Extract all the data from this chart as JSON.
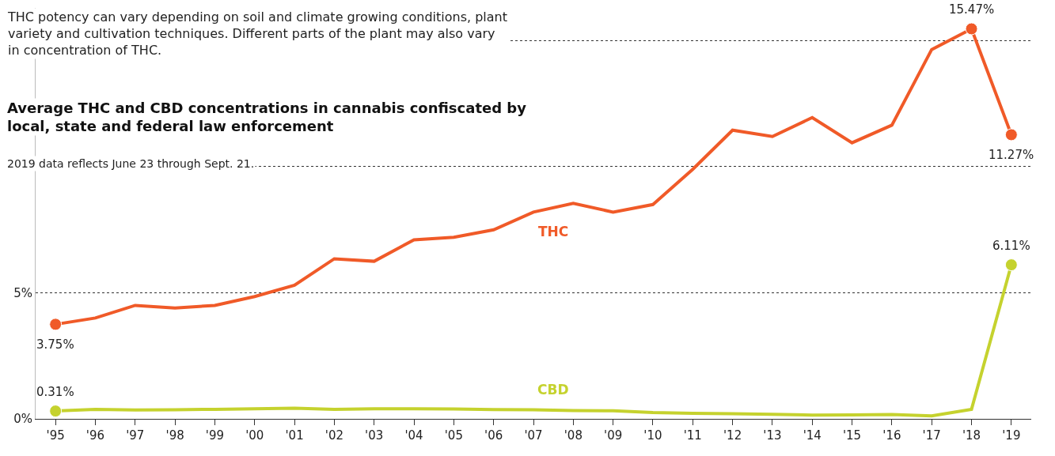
{
  "chart_data": {
    "type": "line",
    "title": "Average THC and CBD concentrations in cannabis confiscated by local, state and federal law enforcement",
    "subtitle": "2019 data reflects June 23 through Sept. 21.",
    "annotations": [
      "THC potency can vary depending on soil and climate growing conditions, plant variety and cultivation techniques. Different parts of the plant may also vary in concentration of THC."
    ],
    "categories": [
      "'95",
      "'96",
      "'97",
      "'98",
      "'99",
      "'00",
      "'01",
      "'02",
      "'03",
      "'04",
      "'05",
      "'06",
      "'07",
      "'08",
      "'09",
      "'10",
      "'11",
      "'12",
      "'13",
      "'14",
      "'15",
      "'16",
      "'17",
      "'18",
      "'19"
    ],
    "series": [
      {
        "name": "THC",
        "color": "#f05a28",
        "values": [
          3.75,
          4.0,
          4.5,
          4.4,
          4.5,
          4.85,
          5.3,
          6.35,
          6.25,
          7.1,
          7.2,
          7.5,
          8.2,
          8.55,
          8.2,
          8.5,
          9.9,
          11.45,
          11.2,
          11.95,
          10.95,
          11.65,
          14.65,
          15.47,
          11.27
        ],
        "value_labels": [
          "3.75%",
          null,
          null,
          null,
          null,
          null,
          null,
          null,
          null,
          null,
          null,
          null,
          null,
          null,
          null,
          null,
          null,
          null,
          null,
          null,
          null,
          null,
          null,
          "15.47%",
          "11.27%"
        ]
      },
      {
        "name": "CBD",
        "color": "#c5d22e",
        "values": [
          0.31,
          0.38,
          0.35,
          0.36,
          0.38,
          0.4,
          0.42,
          0.38,
          0.4,
          0.4,
          0.39,
          0.37,
          0.36,
          0.33,
          0.32,
          0.25,
          0.22,
          0.2,
          0.18,
          0.15,
          0.16,
          0.17,
          0.12,
          0.38,
          6.11
        ],
        "value_labels": [
          "0.31%",
          null,
          null,
          null,
          null,
          null,
          null,
          null,
          null,
          null,
          null,
          null,
          null,
          null,
          null,
          null,
          null,
          null,
          null,
          null,
          null,
          null,
          null,
          null,
          "6.11%"
        ]
      }
    ],
    "yticks": [
      {
        "value": 0,
        "label": "0%"
      },
      {
        "value": 5,
        "label": "5%"
      },
      {
        "value": 10,
        "label": null
      },
      {
        "value": 15,
        "label": null
      }
    ],
    "ylim": [
      0,
      16.3
    ],
    "grid": "y",
    "line_style": "solid",
    "legend": false
  }
}
